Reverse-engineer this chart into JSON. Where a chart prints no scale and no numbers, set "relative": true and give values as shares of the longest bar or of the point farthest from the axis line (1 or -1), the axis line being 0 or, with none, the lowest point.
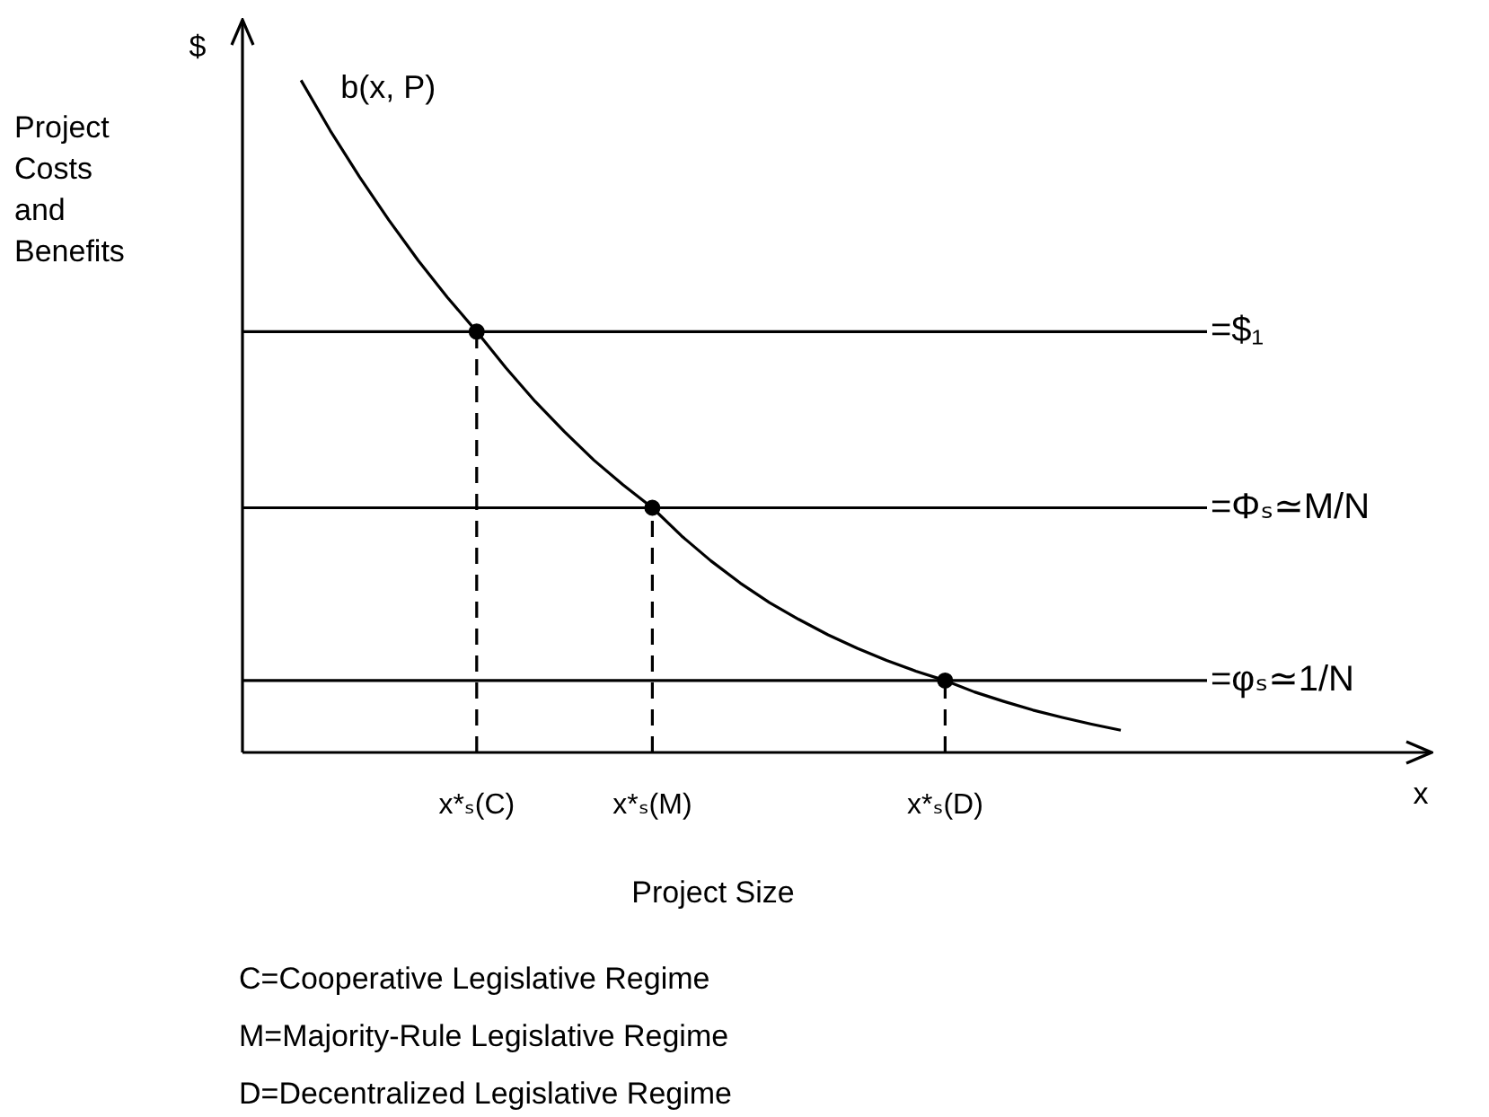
{
  "chart_data": {
    "type": "line",
    "relative": true,
    "categories": [
      null,
      null,
      null,
      null,
      null,
      null,
      null,
      null,
      "x*ₛ(C)",
      null,
      null,
      null,
      null,
      null,
      "x*ₛ(M)",
      null,
      null,
      null,
      null,
      null,
      null,
      null,
      null,
      null,
      "x*ₛ(D)",
      null,
      null,
      null,
      null,
      null,
      null,
      null,
      null,
      null,
      null,
      null,
      null,
      null,
      null,
      null,
      null
    ],
    "xlabel": "Project Size",
    "ylabel": "Project Costs and Benefits",
    "annotations": [
      "$",
      "x",
      "C=Cooperative Legislative Regime",
      "M=Majority-Rule Legislative Regime",
      "D=Decentralized Legislative Regime"
    ],
    "series": [
      {
        "name": "b(x, P)",
        "color": "#000000",
        "marker": "none",
        "values": [
          null,
          null,
          1.0,
          0.925,
          0.856,
          0.792,
          0.732,
          0.677,
          0.626,
          0.572,
          0.522,
          0.477,
          0.435,
          0.398,
          0.364,
          0.322,
          0.285,
          0.252,
          0.223,
          0.198,
          0.175,
          0.155,
          0.137,
          0.121,
          0.107,
          0.09,
          0.076,
          0.063,
          0.052,
          0.042,
          0.033,
          null,
          null,
          null,
          null,
          null,
          null,
          null,
          null,
          null,
          null
        ]
      },
      {
        "type": "line",
        "color": "#000000",
        "marker": "none",
        "line_style": "dashed",
        "x": [
          "x*ₛ(C)",
          "x*ₛ(C)"
        ],
        "values": [
          0,
          0.626
        ]
      },
      {
        "type": "line",
        "color": "#000000",
        "marker": "none",
        "line_style": "dashed",
        "x": [
          "x*ₛ(M)",
          "x*ₛ(M)"
        ],
        "values": [
          0,
          0.364
        ]
      },
      {
        "type": "line",
        "color": "#000000",
        "marker": "none",
        "line_style": "dashed",
        "x": [
          "x*ₛ(D)",
          "x*ₛ(D)"
        ],
        "values": [
          0,
          0.107
        ]
      },
      {
        "type": "scatter",
        "color": "#000000",
        "marker": "circle",
        "x": [
          "x*ₛ(C)",
          "x*ₛ(M)",
          "x*ₛ(D)"
        ],
        "values": [
          0.626,
          0.364,
          0.107
        ]
      }
    ],
    "ref_lines": [
      {
        "axis": "y",
        "value": 0.626,
        "label": "=$₁"
      },
      {
        "axis": "y",
        "value": 0.364,
        "label": "=Φₛ≃M/N"
      },
      {
        "axis": "y",
        "value": 0.107,
        "label": "=φₛ≃1/N"
      }
    ]
  }
}
